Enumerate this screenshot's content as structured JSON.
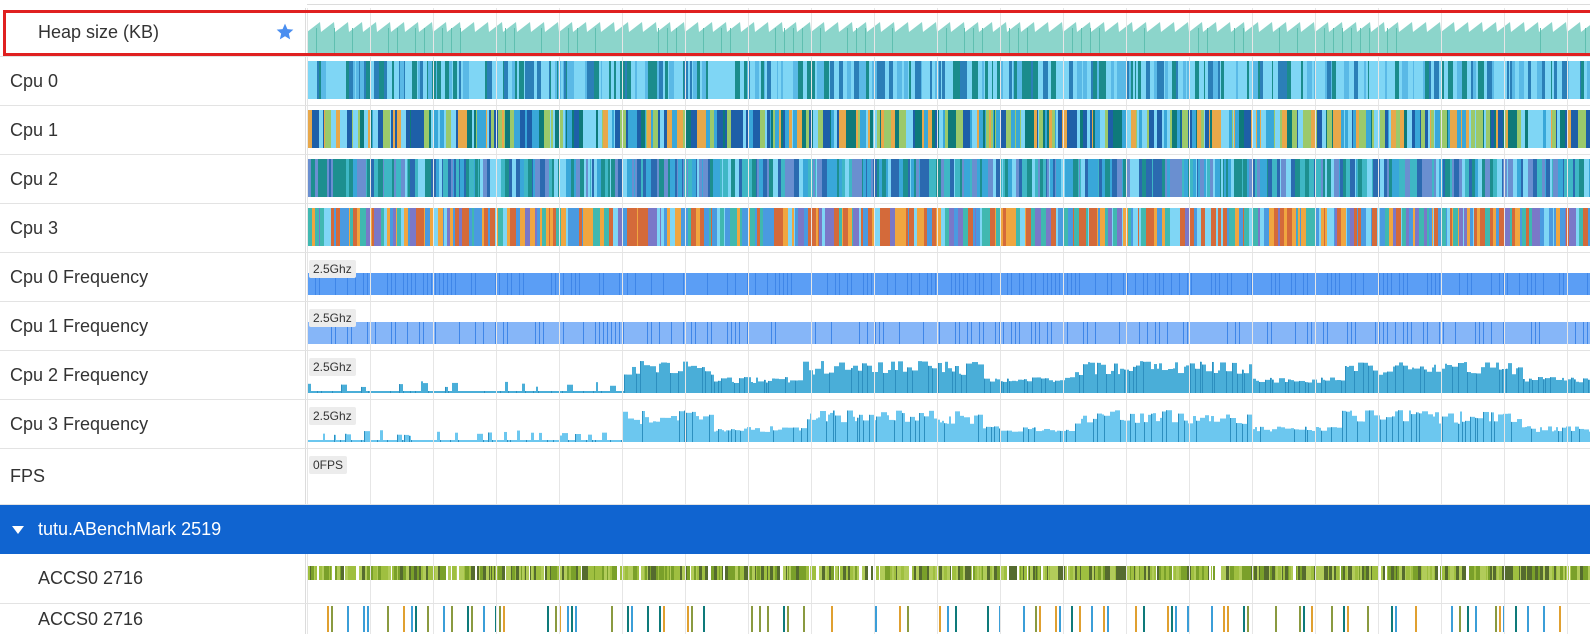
{
  "rows": {
    "heap": {
      "label": "Heap size (KB)",
      "color": "#8cd5cb"
    },
    "cpu0": {
      "label": "Cpu 0",
      "colors": [
        "#7fd6f5",
        "#7fd6f5",
        "#7fd6f5",
        "#1b8c8c",
        "#2b7fb8",
        "#5ab9e6"
      ]
    },
    "cpu1": {
      "label": "Cpu 1",
      "colors": [
        "#0e7a7a",
        "#39a7d9",
        "#7fd6f5",
        "#1e5fa8",
        "#9bc96b",
        "#e8a84a"
      ]
    },
    "cpu2": {
      "label": "Cpu 2",
      "colors": [
        "#3fb7c5",
        "#39a7d9",
        "#2b6ab0",
        "#7fd6f5",
        "#1d8f8f",
        "#6a8fd0"
      ]
    },
    "cpu3": {
      "label": "Cpu 3",
      "colors": [
        "#40b8b0",
        "#7fd6f5",
        "#4a9ae0",
        "#f0a640",
        "#d46a3a",
        "#7a78c8"
      ]
    },
    "cpu0_freq": {
      "label": "Cpu 0 Frequency",
      "value": "2.5Ghz",
      "color": "#5b9ef5"
    },
    "cpu1_freq": {
      "label": "Cpu 1 Frequency",
      "value": "2.5Ghz",
      "color": "#86b6f8"
    },
    "cpu2_freq": {
      "label": "Cpu 2 Frequency",
      "value": "2.5Ghz",
      "color": "#4aaed8"
    },
    "cpu3_freq": {
      "label": "Cpu 3 Frequency",
      "value": "2.5Ghz",
      "color": "#6cc7ef"
    },
    "fps": {
      "label": "FPS",
      "value": "0FPS"
    }
  },
  "process": {
    "label": "tutu.ABenchMark 2519",
    "color": "#1064d0"
  },
  "threads": [
    {
      "label": "ACCS0 2716",
      "colors": [
        "#7aa02a",
        "#b2cc5a",
        "#556b2f",
        "#9fbf40"
      ]
    },
    {
      "label": "ACCS0 2716",
      "colors": [
        "#0e7a7a",
        "#3b9ed8",
        "#e0a030",
        "#8a9a40"
      ]
    }
  ],
  "icons": {
    "favorite": "star-icon",
    "collapse": "caret-down-icon"
  },
  "accent": {
    "highlight": "#e02020",
    "star": "#4a8ef0"
  }
}
